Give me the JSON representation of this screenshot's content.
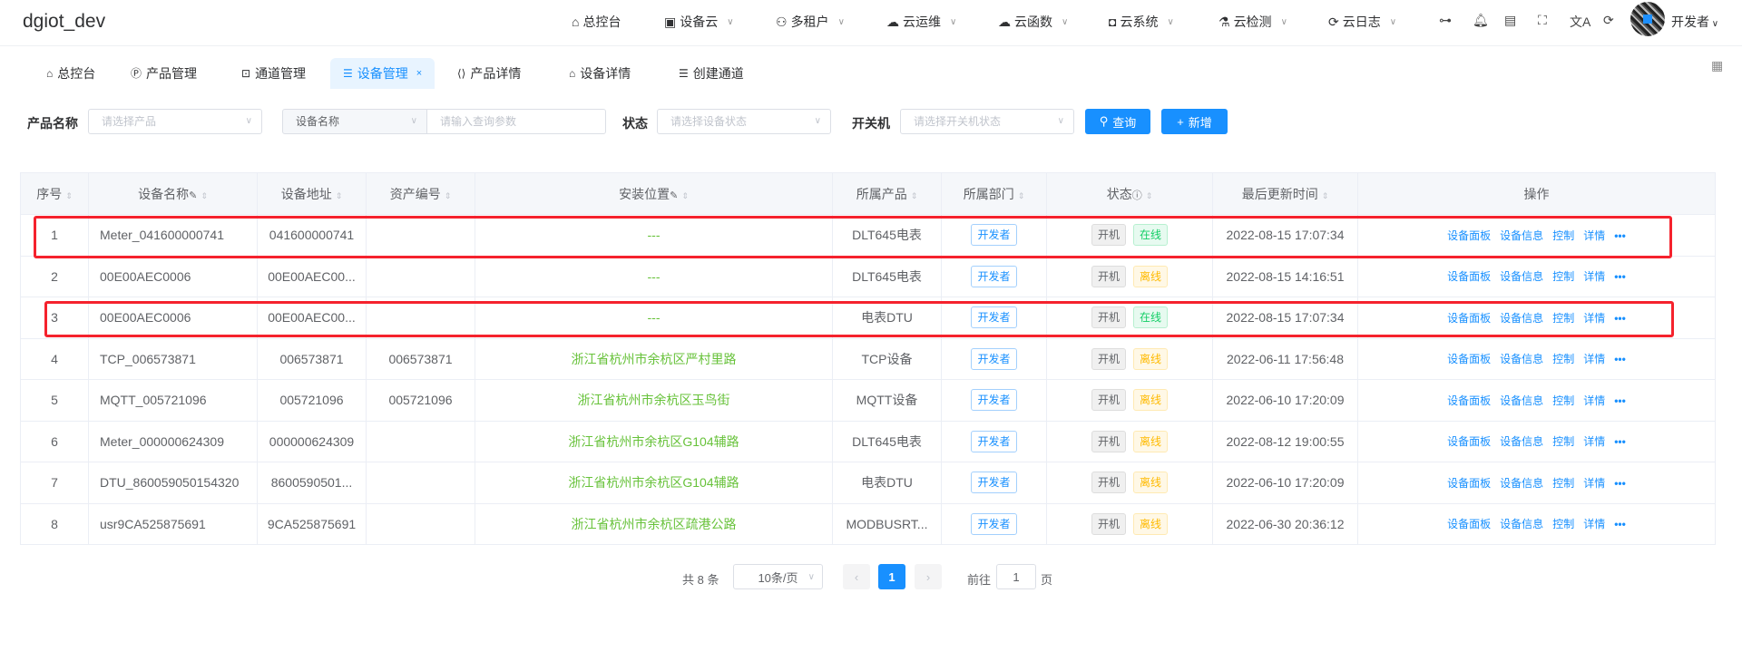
{
  "app_title": "dgiot_dev",
  "nav": [
    {
      "label": "总控台",
      "icon": "home-icon",
      "x": 630
    },
    {
      "label": "设备云",
      "icon": "device-icon",
      "x": 732,
      "dd": true
    },
    {
      "label": "多租户",
      "icon": "users-icon",
      "x": 855,
      "dd": true
    },
    {
      "label": "云运维",
      "icon": "cloud-ops-icon",
      "x": 977,
      "dd": true
    },
    {
      "label": "云函数",
      "icon": "cloud-function-icon",
      "x": 1100,
      "dd": true
    },
    {
      "label": "云系统",
      "icon": "system-icon",
      "x": 1222,
      "dd": true
    },
    {
      "label": "云检测",
      "icon": "test-tube-icon",
      "x": 1343,
      "dd": true
    },
    {
      "label": "云日志",
      "icon": "log-icon",
      "x": 1464,
      "dd": true
    }
  ],
  "user": {
    "name": "开发者"
  },
  "tabs": [
    {
      "label": "总控台",
      "icon": "home-icon"
    },
    {
      "label": "产品管理",
      "icon": "product-icon"
    },
    {
      "label": "通道管理",
      "icon": "channel-icon"
    },
    {
      "label": "设备管理",
      "icon": "list-icon",
      "active": true
    },
    {
      "label": "产品详情",
      "icon": "code-icon"
    },
    {
      "label": "设备详情",
      "icon": "house-icon"
    },
    {
      "label": "创建通道",
      "icon": "list-icon"
    }
  ],
  "filters": {
    "product_label": "产品名称",
    "product_placeholder": "请选择产品",
    "field_select": "设备名称",
    "query_placeholder": "请输入查询参数",
    "status_label": "状态",
    "status_placeholder": "请选择设备状态",
    "power_label": "开关机",
    "power_placeholder": "请选择开关机状态",
    "search_btn": "查询",
    "add_btn": "新增"
  },
  "table": {
    "headers": [
      "序号",
      "设备名称",
      "设备地址",
      "资产编号",
      "安装位置",
      "所属产品",
      "所属部门",
      "状态",
      "最后更新时间",
      "操作"
    ],
    "actions": [
      "设备面板",
      "设备信息",
      "控制",
      "详情"
    ],
    "rows": [
      {
        "no": "1",
        "name": "Meter_041600000741",
        "addr": "041600000741",
        "asset": "",
        "loc": "---",
        "product": "DLT645电表",
        "dept": "开发者",
        "power": "开机",
        "status": "在线",
        "online": true,
        "time": "2022-08-15 17:07:34",
        "highlighted": true
      },
      {
        "no": "2",
        "name": "00E00AEC0006",
        "addr": "00E00AEC00...",
        "asset": "",
        "loc": "---",
        "product": "DLT645电表",
        "dept": "开发者",
        "power": "开机",
        "status": "离线",
        "online": false,
        "time": "2022-08-15 14:16:51"
      },
      {
        "no": "3",
        "name": "00E00AEC0006",
        "addr": "00E00AEC00...",
        "asset": "",
        "loc": "---",
        "product": "电表DTU",
        "dept": "开发者",
        "power": "开机",
        "status": "在线",
        "online": true,
        "time": "2022-08-15 17:07:34",
        "highlighted": true
      },
      {
        "no": "4",
        "name": "TCP_006573871",
        "addr": "006573871",
        "asset": "006573871",
        "loc": "浙江省杭州市余杭区严村里路",
        "product": "TCP设备",
        "dept": "开发者",
        "power": "开机",
        "status": "离线",
        "online": false,
        "time": "2022-06-11 17:56:48"
      },
      {
        "no": "5",
        "name": "MQTT_005721096",
        "addr": "005721096",
        "asset": "005721096",
        "loc": "浙江省杭州市余杭区玉鸟街",
        "product": "MQTT设备",
        "dept": "开发者",
        "power": "开机",
        "status": "离线",
        "online": false,
        "time": "2022-06-10 17:20:09"
      },
      {
        "no": "6",
        "name": "Meter_000000624309",
        "addr": "000000624309",
        "asset": "",
        "loc": "浙江省杭州市余杭区G104辅路",
        "product": "DLT645电表",
        "dept": "开发者",
        "power": "开机",
        "status": "离线",
        "online": false,
        "time": "2022-08-12 19:00:55"
      },
      {
        "no": "7",
        "name": "DTU_860059050154320",
        "addr": "8600590501...",
        "asset": "",
        "loc": "浙江省杭州市余杭区G104辅路",
        "product": "电表DTU",
        "dept": "开发者",
        "power": "开机",
        "status": "离线",
        "online": false,
        "time": "2022-06-10 17:20:09"
      },
      {
        "no": "8",
        "name": "usr9CA525875691",
        "addr": "9CA525875691",
        "asset": "",
        "loc": "浙江省杭州市余杭区疏港公路",
        "product": "MODBUSRT...",
        "dept": "开发者",
        "power": "开机",
        "status": "离线",
        "online": false,
        "time": "2022-06-30 20:36:12"
      }
    ]
  },
  "pagination": {
    "total": "共 8 条",
    "page_size": "10条/页",
    "current": "1",
    "goto_label": "前往",
    "goto_value": "1",
    "page_suffix": "页"
  },
  "colors": {
    "primary": "#1890ff",
    "online": "#13ce66",
    "offline": "#ffba00",
    "location": "#67c23a",
    "highlight": "#f5222d"
  }
}
